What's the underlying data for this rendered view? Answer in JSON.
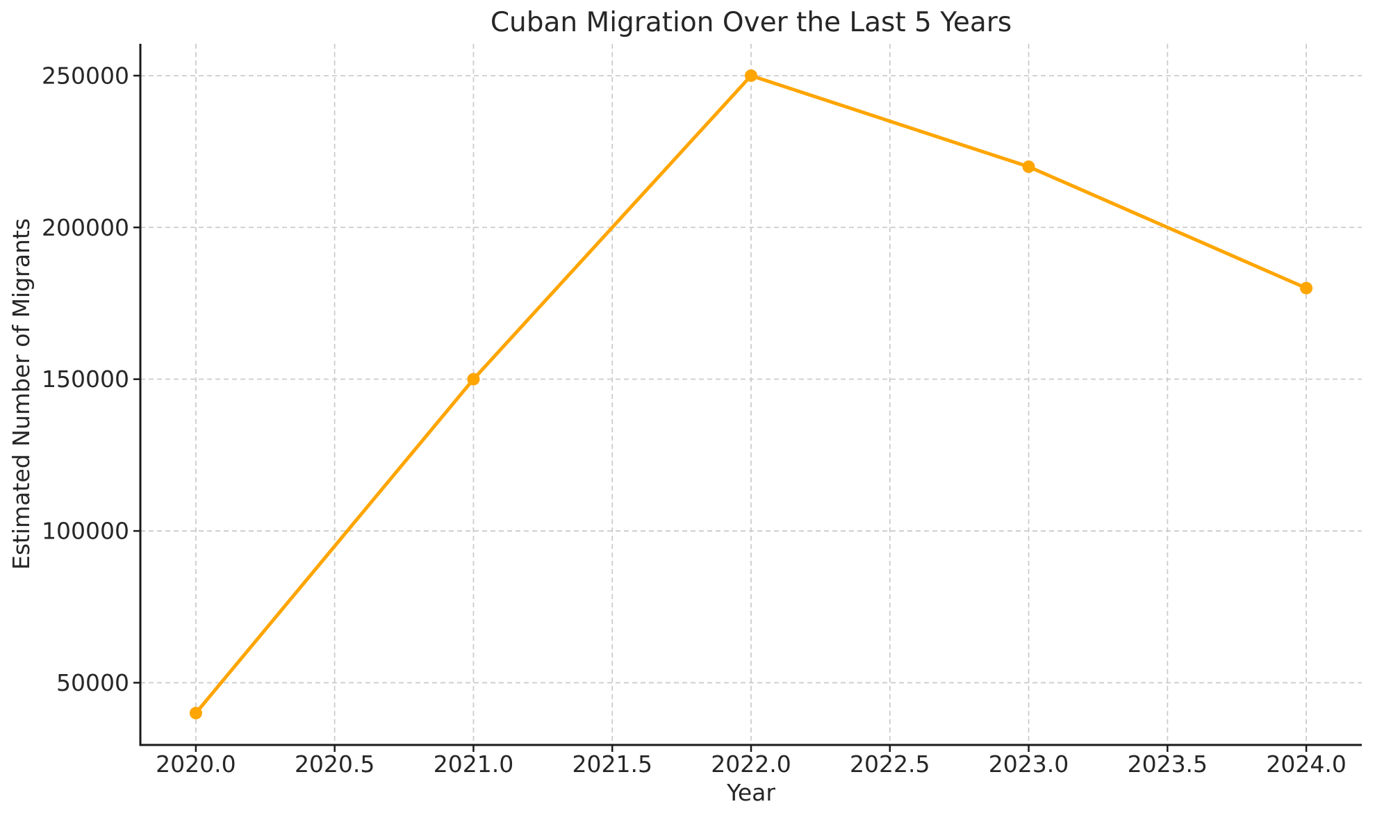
{
  "page": {
    "background": "#ffffff"
  },
  "chart_data": {
    "type": "line",
    "title": "Cuban Migration Over the Last 5 Years",
    "xlabel": "Year",
    "ylabel": "Estimated Number of Migrants",
    "x": [
      2020,
      2021,
      2022,
      2023,
      2024
    ],
    "values": [
      40000,
      150000,
      250000,
      220000,
      180000
    ],
    "xlim": [
      2019.8,
      2024.2
    ],
    "ylim": [
      29500,
      260500
    ],
    "xticks": [
      2020.0,
      2020.5,
      2021.0,
      2021.5,
      2022.0,
      2022.5,
      2023.0,
      2023.5,
      2024.0
    ],
    "xtick_labels": [
      "2020.0",
      "2020.5",
      "2021.0",
      "2021.5",
      "2022.0",
      "2022.5",
      "2023.0",
      "2023.5",
      "2024.0"
    ],
    "yticks": [
      50000,
      100000,
      150000,
      200000,
      250000
    ],
    "ytick_labels": [
      "50000",
      "100000",
      "150000",
      "200000",
      "250000"
    ],
    "grid": true,
    "grid_style": "dashed",
    "legend": false,
    "line_color": "#FFA500",
    "marker": "circle",
    "grid_color": "#cccccc",
    "axis_color": "#1a1a1a",
    "text_color": "#262626"
  }
}
